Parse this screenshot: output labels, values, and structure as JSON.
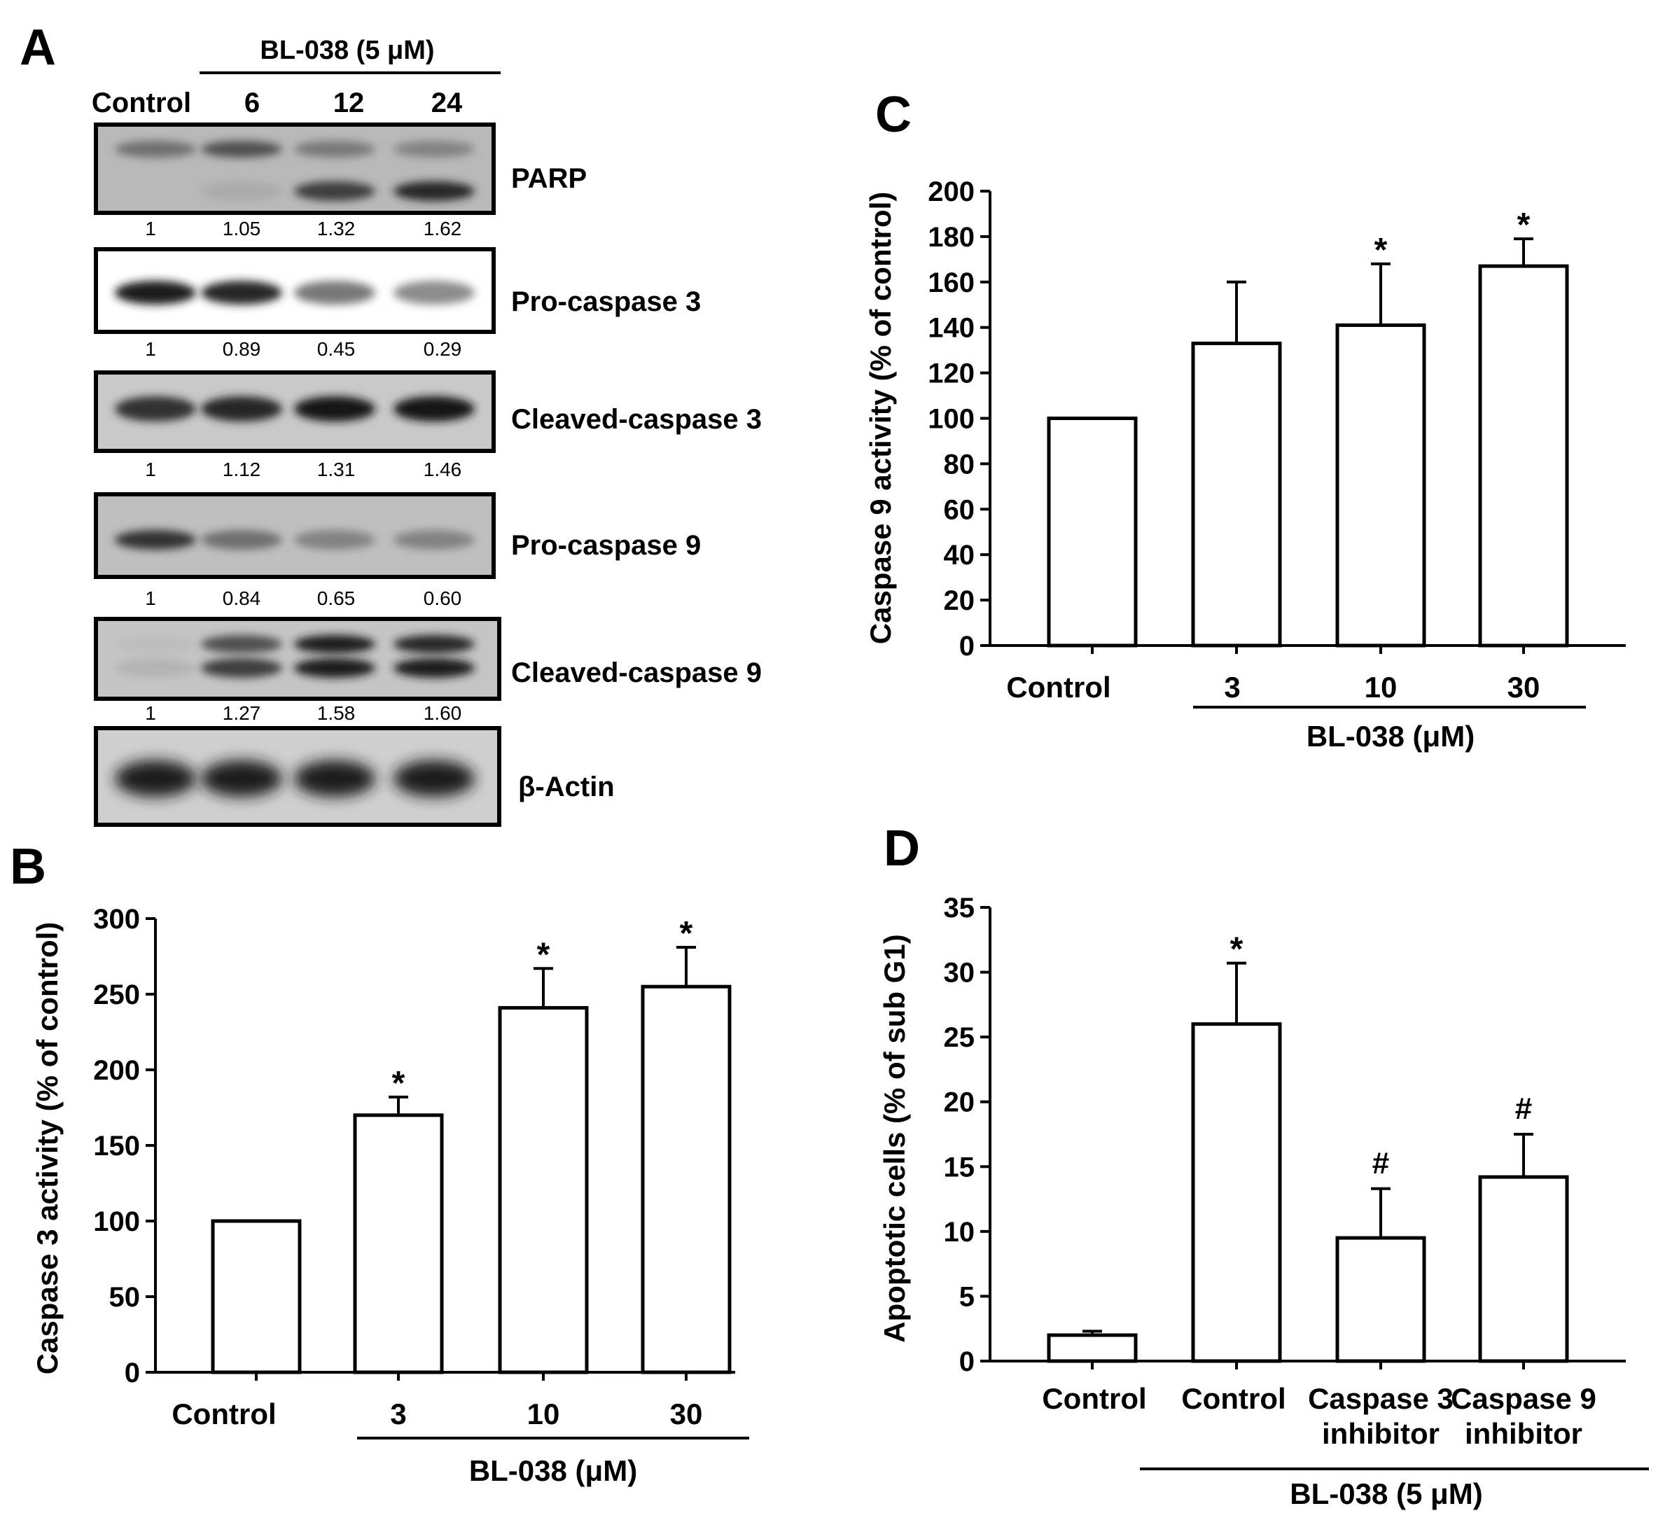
{
  "panels": {
    "A": {
      "letter": "A",
      "treatment_label": "BL-038 (5 μM)",
      "lanes": [
        "Control",
        "6",
        "12",
        "24"
      ],
      "blots": [
        {
          "protein": "PARP",
          "quant": [
            "1",
            "1.05",
            "1.32",
            "1.62"
          ]
        },
        {
          "protein": "Pro-caspase 3",
          "quant": [
            "1",
            "0.89",
            "0.45",
            "0.29"
          ]
        },
        {
          "protein": "Cleaved-caspase 3",
          "quant": [
            "1",
            "1.12",
            "1.31",
            "1.46"
          ]
        },
        {
          "protein": "Pro-caspase 9",
          "quant": [
            "1",
            "0.84",
            "0.65",
            "0.60"
          ]
        },
        {
          "protein": "Cleaved-caspase 9",
          "quant": [
            "1",
            "1.27",
            "1.58",
            "1.60"
          ]
        },
        {
          "protein": "β-Actin",
          "quant": []
        }
      ]
    },
    "B": {
      "letter": "B"
    },
    "C": {
      "letter": "C"
    },
    "D": {
      "letter": "D"
    }
  },
  "chart_data": [
    {
      "panel": "B",
      "type": "bar",
      "ylabel": "Caspase 3 activity (% of control)",
      "xlabel": "BL-038 (μM)",
      "categories": [
        "Control",
        "3",
        "10",
        "30"
      ],
      "values": [
        100,
        170,
        241,
        255
      ],
      "errors": [
        0,
        12,
        26,
        26
      ],
      "significance": [
        "",
        "*",
        "*",
        "*"
      ],
      "ylim": [
        0,
        300
      ],
      "yticks": [
        0,
        50,
        100,
        150,
        200,
        250,
        300
      ]
    },
    {
      "panel": "C",
      "type": "bar",
      "ylabel": "Caspase 9 activity (% of control)",
      "xlabel": "BL-038 (μM)",
      "categories": [
        "Control",
        "3",
        "10",
        "30"
      ],
      "values": [
        100,
        133,
        141,
        167
      ],
      "errors": [
        0,
        27,
        27,
        12
      ],
      "significance": [
        "",
        "",
        "*",
        "*"
      ],
      "ylim": [
        0,
        200
      ],
      "yticks": [
        0,
        20,
        40,
        60,
        80,
        100,
        120,
        140,
        160,
        180,
        200
      ]
    },
    {
      "panel": "D",
      "type": "bar",
      "ylabel": "Apoptotic cells (% of sub G1)",
      "xlabel": "BL-038 (5 μM)",
      "categories": [
        "Control",
        "Control",
        "Caspase 3\ninhibitor",
        "Caspase 9\ninhibitor"
      ],
      "values": [
        2,
        26,
        9.5,
        14.2
      ],
      "errors": [
        0.3,
        4.7,
        3.8,
        3.3
      ],
      "significance": [
        "",
        "*",
        "#",
        "#"
      ],
      "ylim": [
        0,
        35
      ],
      "yticks": [
        0,
        5,
        10,
        15,
        20,
        25,
        30,
        35
      ]
    }
  ]
}
